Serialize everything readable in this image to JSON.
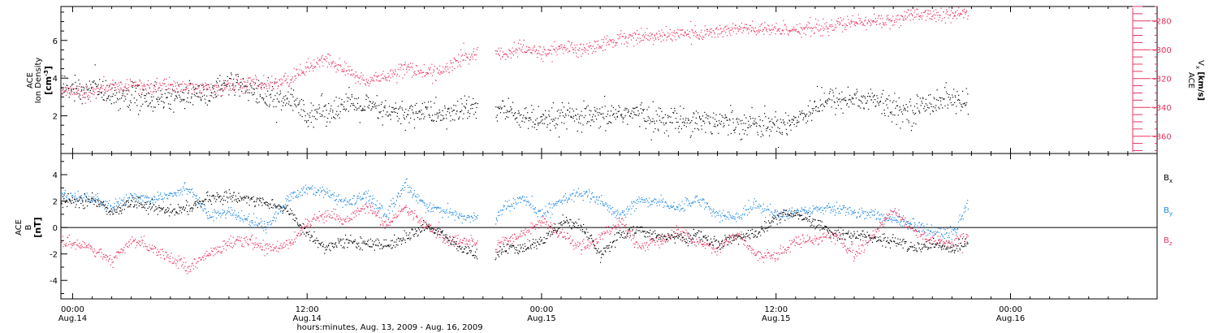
{
  "colors": {
    "black": "#000000",
    "pink": "#e8335f",
    "blue": "#1e88e5"
  },
  "xaxis": {
    "label": "hours:minutes, Aug. 13, 2009 - Aug. 16, 2009",
    "ticks": [
      {
        "hours": 0,
        "time": "00:00",
        "date": "Aug.14"
      },
      {
        "hours": 12,
        "time": "12:00",
        "date": "Aug.14"
      },
      {
        "hours": 24,
        "time": "00:00",
        "date": "Aug.15"
      },
      {
        "hours": 36,
        "time": "12:00",
        "date": "Aug.15"
      },
      {
        "hours": 48,
        "time": "00:00",
        "date": "Aug.16"
      }
    ]
  },
  "chart_data": [
    {
      "type": "scatter",
      "xlim": [
        -0.6,
        55.5
      ],
      "gap": [
        20.7,
        21.6
      ],
      "left_axis": {
        "label_lines": [
          "ACE",
          "Ion Density"
        ],
        "unit_base": "[cm",
        "unit_sup": "-3",
        "unit_close": "]",
        "ylim": [
          0,
          7.8
        ],
        "ticks": [
          2,
          4,
          6
        ],
        "tick_labels": [
          "2",
          "4",
          "6"
        ]
      },
      "right_axis": {
        "label_top": "ACE",
        "label_sub": "V",
        "label_sub_index": "x",
        "unit": "[km/s]",
        "ylim": [
          -372,
          -270
        ],
        "ticks": [
          -280,
          -300,
          -320,
          -340,
          -360
        ],
        "tick_labels": [
          "-280",
          "-300",
          "-320",
          "-340",
          "-360"
        ]
      },
      "series": [
        {
          "key": "ion_density",
          "color_key": "black",
          "axis": "left",
          "knots": [
            [
              -0.6,
              3.6
            ],
            [
              0.5,
              3.3
            ],
            [
              1,
              3.7
            ],
            [
              2,
              3.1
            ],
            [
              3,
              3.0
            ],
            [
              4,
              3.0
            ],
            [
              5,
              2.9
            ],
            [
              6,
              3.2
            ],
            [
              7,
              3.3
            ],
            [
              8,
              3.6
            ],
            [
              9,
              3.4
            ],
            [
              10,
              3.0
            ],
            [
              11,
              2.9
            ],
            [
              12,
              2.2
            ],
            [
              13,
              2.3
            ],
            [
              14,
              2.6
            ],
            [
              15,
              2.5
            ],
            [
              16,
              2.2
            ],
            [
              17,
              2.1
            ],
            [
              18,
              2.3
            ],
            [
              19,
              2.0
            ],
            [
              20,
              2.4
            ],
            [
              20.7,
              2.4
            ],
            [
              21.6,
              2.4
            ],
            [
              22,
              2.3
            ],
            [
              23,
              2.0
            ],
            [
              24,
              1.6
            ],
            [
              25,
              2.0
            ],
            [
              26,
              1.9
            ],
            [
              27,
              1.9
            ],
            [
              28,
              2.2
            ],
            [
              29,
              2.1
            ],
            [
              30,
              1.8
            ],
            [
              31,
              1.8
            ],
            [
              32,
              1.8
            ],
            [
              33,
              1.7
            ],
            [
              34,
              1.7
            ],
            [
              35,
              1.6
            ],
            [
              36,
              1.5
            ],
            [
              37,
              1.8
            ],
            [
              38,
              2.6
            ],
            [
              39,
              2.9
            ],
            [
              40,
              2.9
            ],
            [
              41,
              2.9
            ],
            [
              42,
              2.3
            ],
            [
              43,
              2.3
            ],
            [
              44,
              2.8
            ],
            [
              45,
              3.0
            ],
            [
              45.8,
              2.5
            ]
          ]
        },
        {
          "key": "vx",
          "color_key": "pink",
          "axis": "right",
          "knots": [
            [
              -0.6,
              -328
            ],
            [
              1,
              -330
            ],
            [
              2,
              -326
            ],
            [
              3,
              -324
            ],
            [
              4,
              -326
            ],
            [
              5,
              -324
            ],
            [
              6,
              -326
            ],
            [
              7,
              -327
            ],
            [
              8,
              -325
            ],
            [
              9,
              -323
            ],
            [
              10,
              -324
            ],
            [
              11,
              -321
            ],
            [
              12,
              -312
            ],
            [
              13,
              -307
            ],
            [
              14,
              -314
            ],
            [
              15,
              -322
            ],
            [
              16,
              -318
            ],
            [
              17,
              -312
            ],
            [
              18,
              -316
            ],
            [
              19,
              -314
            ],
            [
              20,
              -305
            ],
            [
              20.7,
              -303
            ],
            [
              21.6,
              -300
            ],
            [
              22,
              -303
            ],
            [
              23,
              -299
            ],
            [
              24,
              -302
            ],
            [
              25,
              -298
            ],
            [
              26,
              -300
            ],
            [
              27,
              -296
            ],
            [
              28,
              -292
            ],
            [
              29,
              -290
            ],
            [
              30,
              -291
            ],
            [
              31,
              -288
            ],
            [
              32,
              -289
            ],
            [
              33,
              -287
            ],
            [
              34,
              -285
            ],
            [
              35,
              -286
            ],
            [
              36,
              -286
            ],
            [
              37,
              -285
            ],
            [
              38,
              -285
            ],
            [
              39,
              -283
            ],
            [
              40,
              -281
            ],
            [
              41,
              -280
            ],
            [
              42,
              -279
            ],
            [
              43,
              -276
            ],
            [
              44,
              -275
            ],
            [
              45,
              -276
            ],
            [
              45.8,
              -274
            ]
          ]
        }
      ]
    },
    {
      "type": "scatter",
      "xlim": [
        -0.6,
        55.5
      ],
      "gap": [
        20.7,
        21.6
      ],
      "ylim": [
        -5.4,
        5.6
      ],
      "zero_line": true,
      "left_axis": {
        "label_lines": [
          "ACE"
        ],
        "label_b": "B",
        "unit": "[nT]",
        "ticks": [
          -4,
          -2,
          0,
          2,
          4
        ],
        "tick_labels": [
          "-4",
          "-2",
          "0",
          "2",
          "4"
        ]
      },
      "legend_position": "right",
      "series": [
        {
          "key": "bx",
          "name_base": "B",
          "name_sub": "x",
          "color_key": "black",
          "knots": [
            [
              -0.6,
              2.0
            ],
            [
              1,
              2.1
            ],
            [
              2,
              1.2
            ],
            [
              3,
              2.0
            ],
            [
              4,
              1.6
            ],
            [
              5,
              1.2
            ],
            [
              6,
              1.6
            ],
            [
              7,
              2.2
            ],
            [
              8,
              2.4
            ],
            [
              9,
              2.2
            ],
            [
              10,
              1.8
            ],
            [
              11,
              1.4
            ],
            [
              12,
              -0.5
            ],
            [
              13,
              -1.5
            ],
            [
              14,
              -1.0
            ],
            [
              15,
              -1.2
            ],
            [
              16,
              -1.3
            ],
            [
              17,
              -0.8
            ],
            [
              18,
              0.2
            ],
            [
              19,
              -0.6
            ],
            [
              20,
              -1.7
            ],
            [
              20.7,
              -2.0
            ],
            [
              21.6,
              -2.2
            ],
            [
              22,
              -1.6
            ],
            [
              23,
              -1.6
            ],
            [
              24,
              -1.0
            ],
            [
              25,
              0.5
            ],
            [
              26,
              0.2
            ],
            [
              27,
              -2.0
            ],
            [
              28,
              -0.5
            ],
            [
              29,
              -0.2
            ],
            [
              30,
              -0.6
            ],
            [
              31,
              -0.8
            ],
            [
              32,
              -0.6
            ],
            [
              33,
              -1.2
            ],
            [
              34,
              -0.7
            ],
            [
              35,
              -0.5
            ],
            [
              36,
              0.8
            ],
            [
              37,
              1.0
            ],
            [
              38,
              0.3
            ],
            [
              39,
              -0.4
            ],
            [
              40,
              -0.5
            ],
            [
              41,
              -0.8
            ],
            [
              42,
              -1.0
            ],
            [
              43,
              -1.5
            ],
            [
              44,
              -1.3
            ],
            [
              45,
              -1.6
            ],
            [
              45.8,
              -1.0
            ]
          ]
        },
        {
          "key": "by",
          "name_base": "B",
          "name_sub": "y",
          "color_key": "blue",
          "knots": [
            [
              -0.6,
              2.6
            ],
            [
              1,
              2.2
            ],
            [
              2,
              1.5
            ],
            [
              3,
              2.4
            ],
            [
              4,
              2.2
            ],
            [
              5,
              2.6
            ],
            [
              6,
              3.0
            ],
            [
              7,
              0.8
            ],
            [
              8,
              1.2
            ],
            [
              9,
              0.5
            ],
            [
              10,
              0.2
            ],
            [
              11,
              2.2
            ],
            [
              12,
              3.0
            ],
            [
              13,
              2.6
            ],
            [
              14,
              1.8
            ],
            [
              15,
              2.5
            ],
            [
              16,
              1.0
            ],
            [
              17,
              3.2
            ],
            [
              18,
              1.8
            ],
            [
              19,
              1.2
            ],
            [
              20,
              0.8
            ],
            [
              20.7,
              0.8
            ],
            [
              21.6,
              0.5
            ],
            [
              22,
              1.5
            ],
            [
              23,
              2.2
            ],
            [
              24,
              1.0
            ],
            [
              25,
              2.2
            ],
            [
              26,
              2.6
            ],
            [
              27,
              2.0
            ],
            [
              28,
              0.8
            ],
            [
              29,
              2.1
            ],
            [
              30,
              2.0
            ],
            [
              31,
              1.5
            ],
            [
              32,
              2.2
            ],
            [
              33,
              1.0
            ],
            [
              34,
              0.8
            ],
            [
              35,
              1.8
            ],
            [
              36,
              1.0
            ],
            [
              37,
              1.2
            ],
            [
              38,
              1.5
            ],
            [
              39,
              1.5
            ],
            [
              40,
              1.2
            ],
            [
              41,
              1.0
            ],
            [
              42,
              0.6
            ],
            [
              43,
              0.2
            ],
            [
              44,
              -0.2
            ],
            [
              45,
              -0.5
            ],
            [
              45.8,
              1.6
            ]
          ]
        },
        {
          "key": "bz",
          "name_base": "B",
          "name_sub": "z",
          "color_key": "pink",
          "knots": [
            [
              -0.6,
              -1.0
            ],
            [
              1,
              -1.5
            ],
            [
              2,
              -2.6
            ],
            [
              3,
              -1.0
            ],
            [
              4,
              -1.4
            ],
            [
              5,
              -2.3
            ],
            [
              6,
              -3.0
            ],
            [
              7,
              -1.8
            ],
            [
              8,
              -1.2
            ],
            [
              9,
              -1.0
            ],
            [
              10,
              -1.6
            ],
            [
              11,
              -1.2
            ],
            [
              12,
              0.3
            ],
            [
              13,
              1.0
            ],
            [
              14,
              0.5
            ],
            [
              15,
              1.8
            ],
            [
              16,
              0.2
            ],
            [
              17,
              1.5
            ],
            [
              18,
              0.2
            ],
            [
              19,
              -0.8
            ],
            [
              20,
              -1.0
            ],
            [
              20.7,
              -1.2
            ],
            [
              21.6,
              -1.6
            ],
            [
              22,
              -1.0
            ],
            [
              23,
              -0.5
            ],
            [
              24,
              0.5
            ],
            [
              25,
              -0.5
            ],
            [
              26,
              -1.5
            ],
            [
              27,
              -0.8
            ],
            [
              28,
              0.5
            ],
            [
              29,
              -1.5
            ],
            [
              30,
              -1.0
            ],
            [
              31,
              -0.3
            ],
            [
              32,
              -1.2
            ],
            [
              33,
              -1.5
            ],
            [
              34,
              -0.5
            ],
            [
              35,
              -2.0
            ],
            [
              36,
              -2.1
            ],
            [
              37,
              -1.0
            ],
            [
              38,
              -0.8
            ],
            [
              39,
              -0.6
            ],
            [
              40,
              -2.0
            ],
            [
              41,
              -0.5
            ],
            [
              42,
              1.5
            ],
            [
              43,
              -0.2
            ],
            [
              44,
              -1.0
            ],
            [
              45,
              -1.2
            ],
            [
              45.8,
              -0.6
            ]
          ]
        }
      ]
    }
  ]
}
